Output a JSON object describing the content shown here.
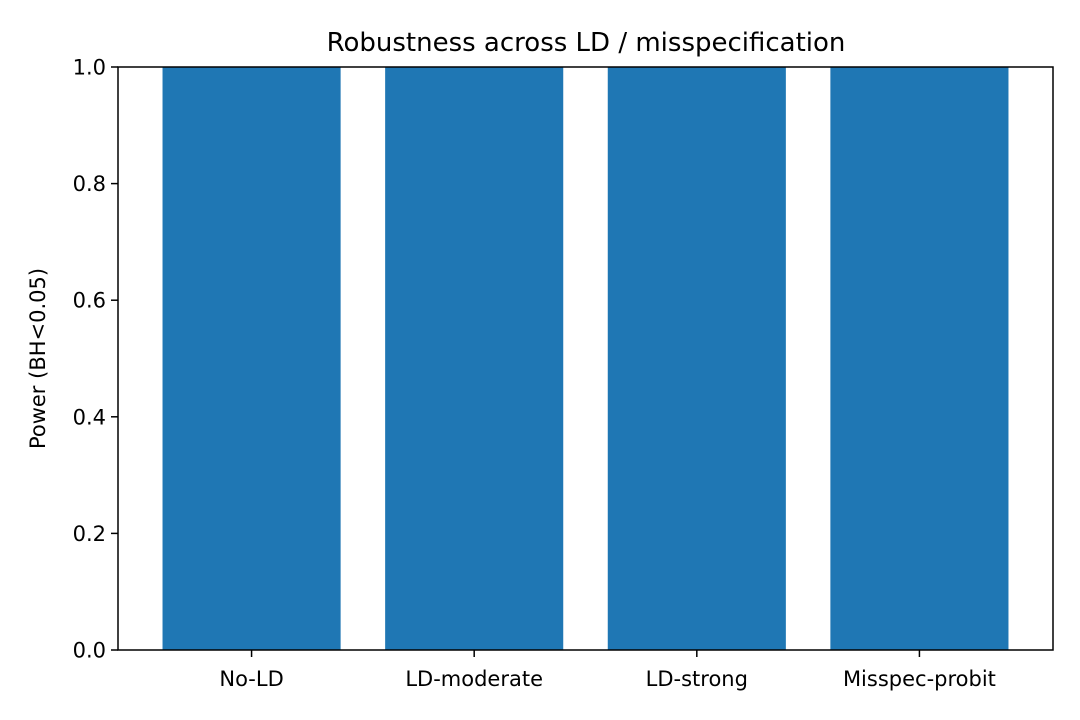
{
  "chart_data": {
    "type": "bar",
    "title": "Robustness across LD / misspecification",
    "xlabel": "",
    "ylabel": "Power (BH<0.05)",
    "categories": [
      "No-LD",
      "LD-moderate",
      "LD-strong",
      "Misspec-probit"
    ],
    "values": [
      1.0,
      1.0,
      1.0,
      1.0
    ],
    "ylim": [
      0.0,
      1.0
    ],
    "yticks": [
      "0.0",
      "0.2",
      "0.4",
      "0.6",
      "0.8",
      "1.0"
    ],
    "grid": false,
    "legend": "none",
    "bar_color": "#1f77b4"
  }
}
